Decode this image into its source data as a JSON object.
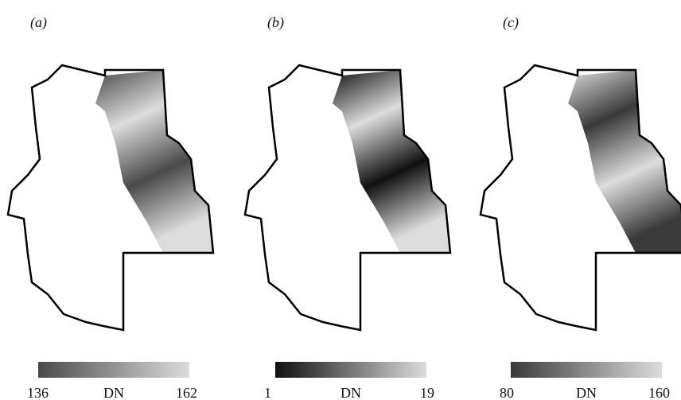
{
  "panels": [
    {
      "label": "(a)",
      "colorbar": {
        "min": "136",
        "unit": "DN",
        "max": "162",
        "colors": [
          "#4a4a4a",
          "#dcdcdc"
        ]
      }
    },
    {
      "label": "(b)",
      "colorbar": {
        "min": "1",
        "unit": "DN",
        "max": "19",
        "colors": [
          "#101010",
          "#dcdcdc"
        ]
      }
    },
    {
      "label": "(c)",
      "colorbar": {
        "min": "80",
        "unit": "DN",
        "max": "160",
        "colors": [
          "#3a3a3a",
          "#dcdcdc"
        ]
      }
    }
  ]
}
